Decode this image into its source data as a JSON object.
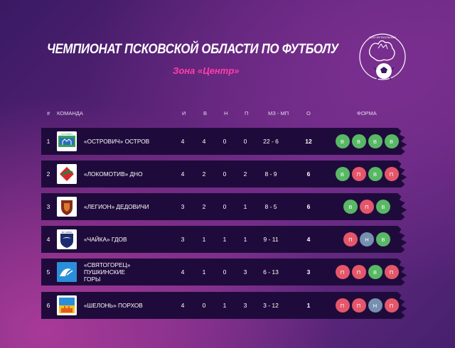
{
  "header": {
    "title": "ЧЕМПИОНАТ ПСКОВСКОЙ ОБЛАСТИ ПО ФУТБОЛУ",
    "subtitle": "Зона «Центр»",
    "logo_text": "ПОО ФУТБОЛЬНАЯ"
  },
  "columns": {
    "pos": "#",
    "team": "КОМАНДА",
    "played": "И",
    "won": "В",
    "drawn": "Н",
    "lost": "П",
    "goals": "МЗ - МП",
    "points": "О",
    "form": "ФОРМА"
  },
  "rows": [
    {
      "pos": "1",
      "team": "«ОСТРОВИЧ» ОСТРОВ",
      "team_line2": "",
      "played": "4",
      "won": "4",
      "drawn": "0",
      "lost": "0",
      "goals": "22 - 6",
      "points": "12",
      "form": [
        "В",
        "В",
        "В",
        "В"
      ],
      "form_types": [
        "w",
        "w",
        "w",
        "w"
      ],
      "logo_label": "ОСТРОВИЧ"
    },
    {
      "pos": "2",
      "team": "«ЛОКОМОТИВ» ДНО",
      "team_line2": "",
      "played": "4",
      "won": "2",
      "drawn": "0",
      "lost": "2",
      "goals": "8 - 9",
      "points": "6",
      "form": [
        "В",
        "П",
        "В",
        "П"
      ],
      "form_types": [
        "w",
        "l",
        "w",
        "l"
      ],
      "logo_label": ""
    },
    {
      "pos": "3",
      "team": "«ЛЕГИОН» ДЕДОВИЧИ",
      "team_line2": "",
      "played": "3",
      "won": "2",
      "drawn": "0",
      "lost": "1",
      "goals": "8 - 5",
      "points": "6",
      "form": [
        "В",
        "П",
        "В"
      ],
      "form_types": [
        "w",
        "l",
        "w"
      ],
      "logo_label": ""
    },
    {
      "pos": "4",
      "team": "«ЧАЙКА» ГДОВ",
      "team_line2": "",
      "played": "3",
      "won": "1",
      "drawn": "1",
      "lost": "1",
      "goals": "9 - 11",
      "points": "4",
      "form": [
        "П",
        "Н",
        "В"
      ],
      "form_types": [
        "l",
        "d",
        "w"
      ],
      "logo_label": "ФК ЧАЙКА"
    },
    {
      "pos": "5",
      "team": "«СВЯТОГОРЕЦ» ПУШКИНСКИЕ",
      "team_line2": "ГОРЫ",
      "played": "4",
      "won": "1",
      "drawn": "0",
      "lost": "3",
      "goals": "6 - 13",
      "points": "3",
      "form": [
        "П",
        "П",
        "В",
        "П"
      ],
      "form_types": [
        "l",
        "l",
        "w",
        "l"
      ],
      "logo_label": ""
    },
    {
      "pos": "6",
      "team": "«ШЕЛОНЬ» ПОРХОВ",
      "team_line2": "",
      "played": "4",
      "won": "0",
      "drawn": "1",
      "lost": "3",
      "goals": "3 - 12",
      "points": "1",
      "form": [
        "П",
        "П",
        "Н",
        "П"
      ],
      "form_types": [
        "l",
        "l",
        "d",
        "l"
      ],
      "logo_label": ""
    }
  ],
  "colors": {
    "win": "#58b865",
    "loss": "#e4566a",
    "draw": "#7690b0",
    "accent": "#ff3fa6",
    "row_bg": "#1f0b3b"
  }
}
